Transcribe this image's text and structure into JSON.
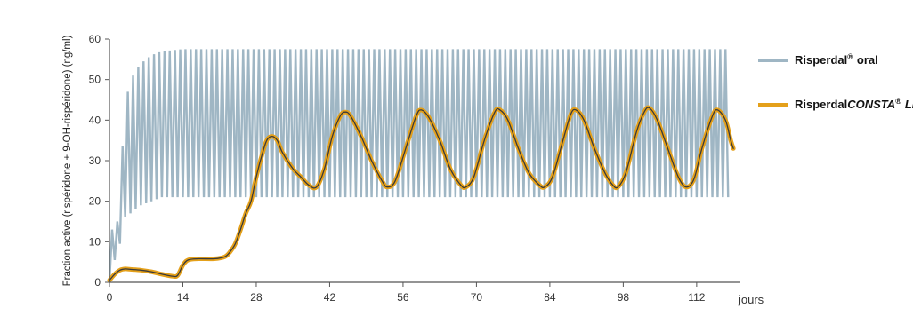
{
  "chart_data": {
    "type": "line",
    "ylabel": "Fraction active (rispéridone + 9-OH-rispéridone) (ng/ml)",
    "xunit": "jours",
    "x_ticks": [
      0,
      14,
      28,
      42,
      56,
      70,
      84,
      98,
      112
    ],
    "y_ticks": [
      0,
      10,
      20,
      30,
      40,
      50,
      60
    ],
    "xlim": [
      0,
      120
    ],
    "ylim": [
      0,
      60
    ],
    "grid": false,
    "legend_position": "right",
    "series": [
      {
        "name": "Risperdal® oral",
        "name_main": "Risperdal",
        "name_suffix": "oral",
        "color": "#9fb6c4",
        "style": "daily-oscillation",
        "period_days": 1,
        "x_start": 0,
        "x_end": 118,
        "peak_points": [
          [
            0.5,
            13
          ],
          [
            1.5,
            15
          ],
          [
            2,
            23
          ],
          [
            3,
            44
          ],
          [
            4,
            50
          ],
          [
            5,
            52
          ],
          [
            6,
            54
          ],
          [
            8,
            56
          ],
          [
            10,
            57
          ],
          [
            14,
            57.5
          ],
          [
            118,
            57.5
          ]
        ],
        "trough_points": [
          [
            0,
            0
          ],
          [
            0.5,
            4
          ],
          [
            1.5,
            7
          ],
          [
            2.5,
            12
          ],
          [
            3,
            16
          ],
          [
            4,
            17
          ],
          [
            6,
            19
          ],
          [
            8,
            20
          ],
          [
            10,
            21
          ],
          [
            14,
            21
          ],
          [
            118,
            21
          ]
        ]
      },
      {
        "name": "RisperdalCONSTA® LP",
        "name_main": "Risperdal",
        "name_italic": "CONSTA",
        "name_suffix": "LP",
        "color": "#e4a01a",
        "points": [
          [
            0,
            0.5
          ],
          [
            1,
            2
          ],
          [
            2,
            3
          ],
          [
            3,
            3.3
          ],
          [
            4,
            3.2
          ],
          [
            6,
            3
          ],
          [
            8,
            2.6
          ],
          [
            10,
            2
          ],
          [
            12,
            1.5
          ],
          [
            13,
            1.7
          ],
          [
            14,
            4.2
          ],
          [
            15,
            5.5
          ],
          [
            17,
            5.8
          ],
          [
            20,
            5.8
          ],
          [
            22,
            6.3
          ],
          [
            23,
            7.5
          ],
          [
            24,
            9.5
          ],
          [
            25,
            13
          ],
          [
            26,
            17
          ],
          [
            27,
            20
          ],
          [
            28,
            26
          ],
          [
            29,
            31
          ],
          [
            30,
            35
          ],
          [
            31,
            36
          ],
          [
            32,
            35
          ],
          [
            33,
            32
          ],
          [
            35,
            28
          ],
          [
            36.5,
            26
          ],
          [
            38,
            24
          ],
          [
            39.5,
            23.5
          ],
          [
            41,
            28
          ],
          [
            42.5,
            36
          ],
          [
            44,
            41
          ],
          [
            45,
            42
          ],
          [
            46,
            41
          ],
          [
            48,
            36
          ],
          [
            50,
            30
          ],
          [
            52,
            25
          ],
          [
            53,
            23.5
          ],
          [
            54.5,
            25
          ],
          [
            56.5,
            33
          ],
          [
            58.5,
            41
          ],
          [
            59.5,
            42.5
          ],
          [
            61,
            40.5
          ],
          [
            63,
            35
          ],
          [
            65,
            28
          ],
          [
            67,
            24
          ],
          [
            68,
            23.5
          ],
          [
            69.5,
            26
          ],
          [
            71.5,
            35
          ],
          [
            73.5,
            42
          ],
          [
            74.5,
            42.5
          ],
          [
            76,
            40
          ],
          [
            78,
            33
          ],
          [
            80,
            27
          ],
          [
            82,
            24
          ],
          [
            83,
            23.5
          ],
          [
            84.5,
            26
          ],
          [
            86.5,
            35
          ],
          [
            88,
            41.5
          ],
          [
            89,
            42.5
          ],
          [
            90.5,
            40
          ],
          [
            92.5,
            33
          ],
          [
            94.5,
            27
          ],
          [
            96,
            24
          ],
          [
            97,
            23.5
          ],
          [
            98.5,
            27
          ],
          [
            100.5,
            37
          ],
          [
            102,
            42
          ],
          [
            103,
            43
          ],
          [
            104.5,
            40
          ],
          [
            106.5,
            33
          ],
          [
            108.5,
            26
          ],
          [
            110,
            23.5
          ],
          [
            111.5,
            25.5
          ],
          [
            113,
            33
          ],
          [
            115,
            41
          ],
          [
            116,
            42.5
          ],
          [
            117.5,
            40
          ],
          [
            118.5,
            35
          ],
          [
            119,
            33
          ]
        ]
      }
    ]
  }
}
